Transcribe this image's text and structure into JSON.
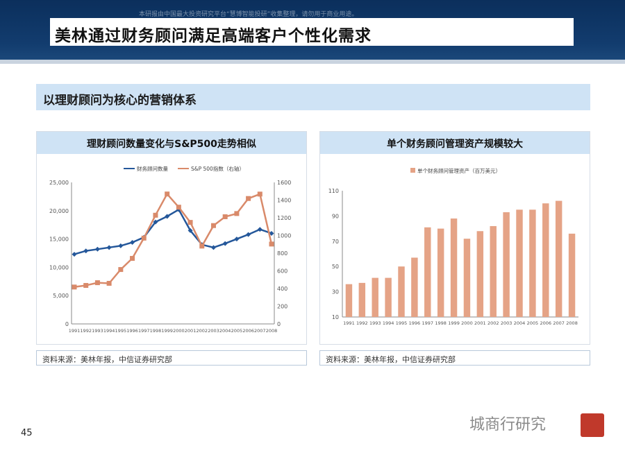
{
  "header": {
    "notice": "本研报由中国最大投资研究平台“慧博智能投研”收集整理，请勿用于商业用途。",
    "title": "美林通过财务顾问满足高端客户个性化需求"
  },
  "section_title": "以理财顾问为核心的营销体系",
  "panels": {
    "left": {
      "title": "理财顾问数量变化与S&P500走势相似",
      "source": "资料来源：美林年报，中信证券研究部"
    },
    "right": {
      "title": "单个财务顾问管理资产规模较大",
      "source": "资料来源：美林年报，中信证券研究部"
    }
  },
  "footer": {
    "page_number": "45",
    "watermark": "城商行研究"
  },
  "chart_data": [
    {
      "type": "line",
      "title": "理财顾问数量变化与S&P500走势相似",
      "x": [
        "1991",
        "1992",
        "1993",
        "1994",
        "1995",
        "1996",
        "1997",
        "1998",
        "1999",
        "2000",
        "2001",
        "2002",
        "2003",
        "2004",
        "2005",
        "2006",
        "2007",
        "2008"
      ],
      "series": [
        {
          "name": "财务顾问数量",
          "axis": "left",
          "color": "#24579a",
          "values": [
            12300,
            12900,
            13200,
            13500,
            13800,
            14400,
            15300,
            18000,
            19000,
            20200,
            16500,
            14000,
            13500,
            14200,
            15000,
            15800,
            16700,
            16000
          ]
        },
        {
          "name": "S&P 500指数（右轴）",
          "axis": "right",
          "color": "#d98a6a",
          "values": [
            417,
            435,
            466,
            459,
            615,
            741,
            970,
            1229,
            1469,
            1320,
            1148,
            880,
            1112,
            1212,
            1248,
            1418,
            1468,
            903
          ]
        }
      ],
      "yticks_left": [
        "0",
        "5,000",
        "10,000",
        "15,000",
        "20,000",
        "25,000"
      ],
      "ylim_left": [
        0,
        25000
      ],
      "yticks_right": [
        "0",
        "200",
        "400",
        "600",
        "800",
        "1000",
        "1200",
        "1400",
        "1600"
      ],
      "ylim_right": [
        0,
        1600
      ],
      "legend": "top-center"
    },
    {
      "type": "bar",
      "title": "单个财务顾问管理资产规模较大",
      "categories": [
        "1991",
        "1992",
        "1993",
        "1994",
        "1995",
        "1996",
        "1997",
        "1998",
        "1999",
        "2000",
        "2001",
        "2002",
        "2003",
        "2004",
        "2005",
        "2006",
        "2007",
        "2008"
      ],
      "series": [
        {
          "name": "单个财务顾问管理资产（百万美元）",
          "color": "#e5a386",
          "values": [
            36,
            37,
            41,
            41,
            50,
            57,
            81,
            80,
            88,
            72,
            78,
            82,
            93,
            95,
            95,
            100,
            102,
            76
          ]
        }
      ],
      "yticks": [
        "10",
        "30",
        "50",
        "70",
        "90",
        "110"
      ],
      "ylim": [
        10,
        110
      ],
      "legend": "top-left"
    }
  ]
}
